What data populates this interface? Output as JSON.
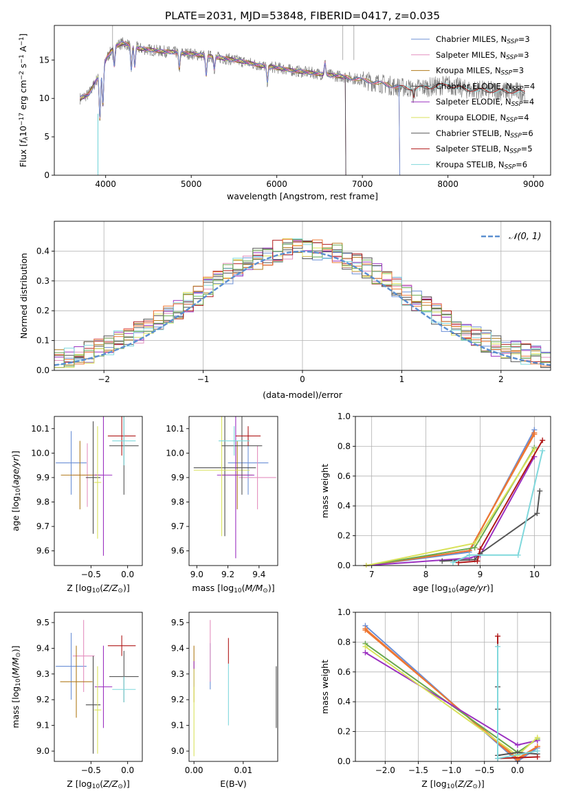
{
  "figure": {
    "title": "PLATE=2031, MJD=53848, FIBERID=0417, z=0.035"
  },
  "colors": {
    "Chabrier MILES": "#6b8fd6",
    "Salpeter MILES": "#e48fbf",
    "Kroupa MILES": "#b07a1a",
    "Chabrier ELODIE": "#4d4d4d",
    "Salpeter ELODIE": "#9b30c0",
    "Kroupa ELODIE": "#d9e25a",
    "Chabrier STELIB": "#555555",
    "Salpeter STELIB": "#b01818",
    "Kroupa STELIB": "#7fd8dc",
    "data": "#7f7f7f",
    "normal": "#5b8fd0",
    "orange": "#ee7733",
    "green": "#6aa84f"
  },
  "chart_data": [
    {
      "id": "spectrum",
      "type": "line",
      "xlabel": "wavelength [Angstrom, rest frame]",
      "ylabel": "Flux [f_λ10^-17 erg cm^-2 s^-1 A^-1]",
      "xlim": [
        3400,
        9200
      ],
      "ylim": [
        0,
        19.5
      ],
      "xticks": [
        4000,
        5000,
        6000,
        7000,
        8000,
        9000
      ],
      "yticks": [
        0,
        5,
        10,
        15
      ],
      "legend_position": "top-right",
      "legend": [
        {
          "label": "Chabrier MILES, N",
          "sub": "SSP",
          "tail": "=3"
        },
        {
          "label": "Salpeter MILES, N",
          "sub": "SSP",
          "tail": "=3"
        },
        {
          "label": "Kroupa MILES, N",
          "sub": "SSP",
          "tail": "=3"
        },
        {
          "label": "Chabrier ELODIE, N",
          "sub": "SSP",
          "tail": "=4"
        },
        {
          "label": "Salpeter ELODIE, N",
          "sub": "SSP",
          "tail": "=4"
        },
        {
          "label": "Kroupa ELODIE, N",
          "sub": "SSP",
          "tail": "=4"
        },
        {
          "label": "Chabrier STELIB, N",
          "sub": "SSP",
          "tail": "=6"
        },
        {
          "label": "Salpeter STELIB, N",
          "sub": "SSP",
          "tail": "=5"
        },
        {
          "label": "Kroupa STELIB, N",
          "sub": "SSP",
          "tail": "=6"
        }
      ],
      "continuum": {
        "x": [
          3700,
          3800,
          3900,
          4000,
          4100,
          4200,
          4400,
          4600,
          4800,
          5000,
          5200,
          5400,
          5600,
          5800,
          6000,
          6200,
          6500,
          6800,
          7000,
          7200,
          7400,
          7600,
          7800,
          8000,
          8200,
          8500,
          8800,
          8900
        ],
        "y": [
          10.0,
          10.5,
          12.5,
          15.0,
          16.8,
          17.2,
          16.5,
          16.2,
          16.0,
          15.8,
          15.5,
          15.2,
          14.8,
          14.3,
          14.0,
          13.6,
          13.2,
          12.8,
          12.4,
          12.0,
          11.5,
          11.3,
          11.5,
          11.8,
          11.2,
          11.0,
          10.9,
          10.8
        ]
      },
      "models_cutoff": {
        "Chabrier MILES": 7430,
        "Salpeter MILES": 7430,
        "Kroupa MILES": 7430,
        "Chabrier ELODIE": 6800,
        "Salpeter ELODIE": 6800,
        "Kroupa ELODIE": 6800,
        "Chabrier STELIB": 8900,
        "Salpeter STELIB": 8900,
        "Kroupa STELIB": 8900
      }
    },
    {
      "id": "residuals",
      "type": "histogram",
      "xlabel": "(data-model)/error",
      "ylabel": "Normed distribution",
      "xlim": [
        -2.5,
        2.5
      ],
      "ylim": [
        0,
        0.5
      ],
      "xticks": [
        -2,
        -1,
        0,
        1,
        2
      ],
      "yticks": [
        0.0,
        0.1,
        0.2,
        0.3,
        0.4
      ],
      "grid": true,
      "legend_position": "top-right",
      "legend_label": "N(0,1)",
      "bin_width": 0.1
    },
    {
      "id": "age_vs_Z",
      "type": "errorbar",
      "xlabel": "Z [log10(Z/Z⊙)]",
      "ylabel": "age  [log10(age/yr)]",
      "xlim": [
        -1.0,
        0.2
      ],
      "ylim": [
        9.54,
        10.15
      ],
      "xticks": [
        -0.5,
        0.0
      ],
      "yticks": [
        9.6,
        9.7,
        9.8,
        9.9,
        10.0,
        10.1
      ],
      "points": [
        {
          "series": "Chabrier MILES",
          "x": -0.77,
          "xerr": 0.21,
          "y": 9.96,
          "yerr": 0.13
        },
        {
          "series": "Salpeter MILES",
          "x": -0.55,
          "xerr": 0.2,
          "y": 9.91,
          "yerr": 0.13
        },
        {
          "series": "Kroupa MILES",
          "x": -0.65,
          "xerr": 0.26,
          "y": 9.91,
          "yerr": 0.14
        },
        {
          "series": "Chabrier ELODIE",
          "x": -0.47,
          "xerr": 0.1,
          "y": 9.9,
          "yerr": 0.23
        },
        {
          "series": "Salpeter ELODIE",
          "x": -0.33,
          "xerr": 0.12,
          "y": 9.91,
          "yerr": 0.33
        },
        {
          "series": "Kroupa ELODIE",
          "x": -0.41,
          "xerr": 0.05,
          "y": 9.88,
          "yerr": 0.23
        },
        {
          "series": "Chabrier STELIB",
          "x": -0.05,
          "xerr": 0.2,
          "y": 10.03,
          "yerr": 0.2
        },
        {
          "series": "Salpeter STELIB",
          "x": -0.08,
          "xerr": 0.19,
          "y": 10.07,
          "yerr": 0.08
        },
        {
          "series": "Kroupa STELIB",
          "x": -0.05,
          "xerr": 0.16,
          "y": 10.05,
          "yerr": 0.1
        }
      ]
    },
    {
      "id": "age_vs_mass",
      "type": "errorbar",
      "xlabel": "mass [log10(M/M⊙)]",
      "ylabel": "",
      "xlim": [
        8.95,
        9.52
      ],
      "ylim": [
        9.54,
        10.15
      ],
      "xticks": [
        9.0,
        9.2,
        9.4
      ],
      "yticks": [
        9.6,
        9.7,
        9.8,
        9.9,
        10.0,
        10.1
      ],
      "points": [
        {
          "series": "Chabrier MILES",
          "x": 9.33,
          "xerr": 0.13,
          "y": 9.96,
          "yerr": 0.13
        },
        {
          "series": "Salpeter MILES",
          "x": 9.39,
          "xerr": 0.12,
          "y": 9.9,
          "yerr": 0.13
        },
        {
          "series": "Kroupa MILES",
          "x": 9.26,
          "xerr": 0.1,
          "y": 9.91,
          "yerr": 0.14
        },
        {
          "series": "Chabrier ELODIE",
          "x": 9.18,
          "xerr": 0.2,
          "y": 9.94,
          "yerr": 0.28
        },
        {
          "series": "Salpeter ELODIE",
          "x": 9.25,
          "xerr": 0.12,
          "y": 9.91,
          "yerr": 0.34
        },
        {
          "series": "Kroupa ELODIE",
          "x": 9.16,
          "xerr": 0.18,
          "y": 9.93,
          "yerr": 0.27
        },
        {
          "series": "Chabrier STELIB",
          "x": 9.29,
          "xerr": 0.13,
          "y": 10.03,
          "yerr": 0.2
        },
        {
          "series": "Salpeter STELIB",
          "x": 9.33,
          "xerr": 0.08,
          "y": 10.07,
          "yerr": 0.04
        },
        {
          "series": "Kroupa STELIB",
          "x": 9.24,
          "xerr": 0.1,
          "y": 10.05,
          "yerr": 0.06
        }
      ]
    },
    {
      "id": "weight_vs_age",
      "type": "line",
      "xlabel": "age  [log10(age/yr)]",
      "ylabel": "mass weight",
      "xlim": [
        6.7,
        10.3
      ],
      "ylim": [
        0,
        1.0
      ],
      "xticks": [
        7,
        8,
        9,
        10
      ],
      "yticks": [
        0.0,
        0.2,
        0.4,
        0.6,
        0.8,
        1.0
      ],
      "grid": true,
      "series": [
        {
          "name": "Chabrier MILES",
          "x": [
            6.9,
            8.8,
            10.0
          ],
          "y": [
            0.0,
            0.09,
            0.91
          ]
        },
        {
          "name": "Salpeter MILES",
          "x": [
            6.9,
            8.8,
            10.0
          ],
          "y": [
            0.0,
            0.1,
            0.89
          ]
        },
        {
          "name": "Kroupa MILES",
          "x": [
            6.9,
            8.8,
            10.0
          ],
          "y": [
            0.0,
            0.1,
            0.88
          ]
        },
        {
          "name": "Chabrier ELODIE",
          "x": [
            6.9,
            8.9,
            10.0
          ],
          "y": [
            0.0,
            0.12,
            0.79
          ]
        },
        {
          "name": "Salpeter ELODIE",
          "x": [
            6.9,
            8.8,
            9.0,
            10.0
          ],
          "y": [
            0.0,
            0.05,
            0.07,
            0.73
          ]
        },
        {
          "name": "Kroupa ELODIE",
          "x": [
            6.9,
            8.9,
            10.0
          ],
          "y": [
            0.0,
            0.15,
            0.78
          ]
        },
        {
          "name": "Chabrier STELIB",
          "x": [
            8.3,
            8.9,
            9.0,
            10.05,
            10.1
          ],
          "y": [
            0.03,
            0.04,
            0.08,
            0.35,
            0.5
          ]
        },
        {
          "name": "Salpeter STELIB",
          "x": [
            8.6,
            8.95,
            9.0,
            10.15
          ],
          "y": [
            0.02,
            0.03,
            0.11,
            0.84
          ]
        },
        {
          "name": "Kroupa STELIB",
          "x": [
            8.5,
            8.8,
            9.7,
            10.15
          ],
          "y": [
            0.02,
            0.07,
            0.07,
            0.77
          ]
        }
      ]
    },
    {
      "id": "mass_vs_Z",
      "type": "errorbar",
      "xlabel": "Z [log10(Z/Z⊙)]",
      "ylabel": "mass [log10(M/M⊙)]",
      "xlim": [
        -1.0,
        0.2
      ],
      "ylim": [
        8.96,
        9.54
      ],
      "xticks": [
        -0.5,
        0.0
      ],
      "yticks": [
        9.0,
        9.1,
        9.2,
        9.3,
        9.4,
        9.5
      ],
      "points": [
        {
          "series": "Chabrier MILES",
          "x": -0.77,
          "xerr": 0.21,
          "y": 9.33,
          "yerr": 0.13
        },
        {
          "series": "Salpeter MILES",
          "x": -0.6,
          "xerr": 0.15,
          "y": 9.37,
          "yerr": 0.14
        },
        {
          "series": "Kroupa MILES",
          "x": -0.7,
          "xerr": 0.22,
          "y": 9.27,
          "yerr": 0.14
        },
        {
          "series": "Chabrier ELODIE",
          "x": -0.47,
          "xerr": 0.1,
          "y": 9.18,
          "yerr": 0.19
        },
        {
          "series": "Salpeter ELODIE",
          "x": -0.33,
          "xerr": 0.12,
          "y": 9.25,
          "yerr": 0.16
        },
        {
          "series": "Kroupa ELODIE",
          "x": -0.41,
          "xerr": 0.05,
          "y": 9.16,
          "yerr": 0.17
        },
        {
          "series": "Chabrier STELIB",
          "x": -0.05,
          "xerr": 0.2,
          "y": 9.29,
          "yerr": 0.1
        },
        {
          "series": "Salpeter STELIB",
          "x": -0.08,
          "xerr": 0.19,
          "y": 9.41,
          "yerr": 0.04
        },
        {
          "series": "Kroupa STELIB",
          "x": -0.05,
          "xerr": 0.16,
          "y": 9.24,
          "yerr": 0.05
        }
      ]
    },
    {
      "id": "mass_vs_ebv",
      "type": "errorbar",
      "xlabel": "E(B-V)",
      "ylabel": "",
      "xlim": [
        -0.001,
        0.017
      ],
      "ylim": [
        8.96,
        9.54
      ],
      "xticks": [
        0.0,
        0.01
      ],
      "yticks": [
        9.0,
        9.1,
        9.2,
        9.3,
        9.4,
        9.5
      ],
      "points": [
        {
          "series": "Chabrier MILES",
          "x": 0.0033,
          "y": 9.33,
          "yerr": 0.09
        },
        {
          "series": "Salpeter MILES",
          "x": 0.0033,
          "y": 9.39,
          "yerr": 0.12
        },
        {
          "series": "Kroupa MILES",
          "x": 0.0,
          "y": 9.3,
          "yerr": 0.11
        },
        {
          "series": "Salpeter ELODIE",
          "x": 0.0,
          "y": 9.3,
          "yerr": 0.05
        },
        {
          "series": "Kroupa ELODIE",
          "x": 0.0,
          "y": 9.15,
          "yerr": 0.17
        },
        {
          "series": "Chabrier STELIB",
          "x": 0.0167,
          "y": 9.21,
          "yerr": 0.12
        },
        {
          "series": "Salpeter STELIB",
          "x": 0.007,
          "y": 9.39,
          "yerr": 0.05
        },
        {
          "series": "Kroupa STELIB",
          "x": 0.007,
          "y": 9.22,
          "yerr": 0.12
        }
      ]
    },
    {
      "id": "weight_vs_Z",
      "type": "line",
      "xlabel": "Z [log10(Z/Z⊙)]",
      "ylabel": "mass weight",
      "xlim": [
        -2.45,
        0.5
      ],
      "ylim": [
        0,
        1.0
      ],
      "xticks": [
        -2.0,
        -1.5,
        -1.0,
        -0.5,
        0.0
      ],
      "yticks": [
        0.0,
        0.2,
        0.4,
        0.6,
        0.8,
        1.0
      ],
      "grid": true,
      "series": [
        {
          "name": "Chabrier MILES",
          "x": [
            -2.3,
            0.0,
            0.3
          ],
          "y": [
            0.91,
            0.0,
            0.09
          ]
        },
        {
          "name": "Salpeter MILES",
          "x": [
            -2.3,
            0.0,
            0.3
          ],
          "y": [
            0.89,
            0.01,
            0.1
          ]
        },
        {
          "name": "Kroupa MILES",
          "x": [
            -2.3,
            0.0,
            0.3
          ],
          "y": [
            0.88,
            0.02,
            0.1
          ]
        },
        {
          "name": "Chabrier ELODIE",
          "x": [
            -2.3,
            0.0,
            0.3
          ],
          "y": [
            0.79,
            0.06,
            0.15
          ]
        },
        {
          "name": "Salpeter ELODIE",
          "x": [
            -2.3,
            0.0,
            0.3
          ],
          "y": [
            0.73,
            0.11,
            0.14
          ]
        },
        {
          "name": "Kroupa ELODIE",
          "x": [
            -2.3,
            0.0,
            0.3
          ],
          "y": [
            0.77,
            0.04,
            0.16
          ]
        },
        {
          "name": "Chabrier STELIB",
          "x": [
            -0.3,
            -0.3,
            -0.3,
            0.0,
            0.3
          ],
          "y": [
            0.5,
            0.35,
            0.04,
            0.06,
            0.05
          ]
        },
        {
          "name": "Salpeter STELIB",
          "x": [
            -0.3,
            -0.3,
            0.3
          ],
          "y": [
            0.84,
            0.02,
            0.03
          ]
        },
        {
          "name": "Kroupa STELIB",
          "x": [
            -0.3,
            -0.3,
            0.3
          ],
          "y": [
            0.77,
            0.02,
            0.07
          ]
        }
      ]
    }
  ]
}
